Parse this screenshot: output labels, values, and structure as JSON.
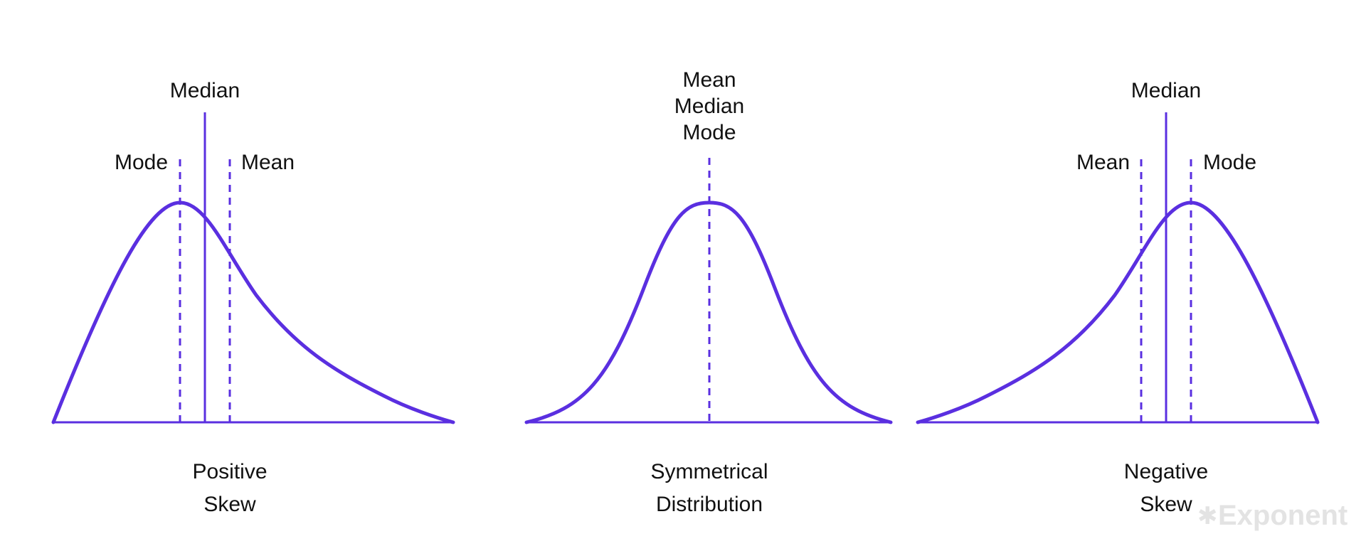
{
  "colors": {
    "accent": "#5a2fe0",
    "text": "#111111",
    "watermark": "#e3e3e3"
  },
  "panels": {
    "positive": {
      "median_label": "Median",
      "mode_label": "Mode",
      "mean_label": "Mean",
      "caption_line1": "Positive",
      "caption_line2": "Skew"
    },
    "symmetrical": {
      "label_line1": "Mean",
      "label_line2": "Median",
      "label_line3": "Mode",
      "caption_line1": "Symmetrical",
      "caption_line2": "Distribution"
    },
    "negative": {
      "median_label": "Median",
      "mean_label": "Mean",
      "mode_label": "Mode",
      "caption_line1": "Negative",
      "caption_line2": "Skew"
    }
  },
  "watermark": {
    "icon": "star-icon",
    "text": "Exponent"
  }
}
